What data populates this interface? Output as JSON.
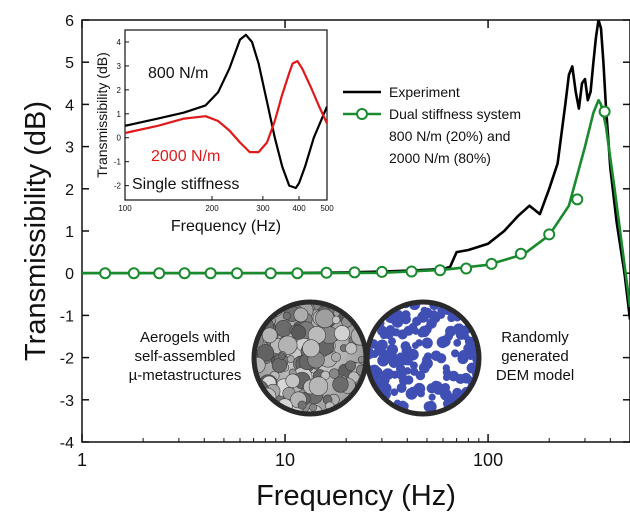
{
  "chart_data": [
    {
      "type": "line",
      "xscale": "log",
      "xlabel": "Frequency (Hz)",
      "ylabel": "Transmissibility (dB)",
      "xlim": [
        1,
        500
      ],
      "ylim": [
        -4,
        6
      ],
      "x_ticks": [
        "1",
        "10",
        "100"
      ],
      "y_ticks": [
        "-4",
        "-3",
        "-2",
        "-1",
        "0",
        "1",
        "2",
        "3",
        "4",
        "5",
        "6"
      ],
      "legend": {
        "position": "top-right",
        "entries": [
          "Experiment",
          "Dual stiffness system",
          "800 N/m (20%) and",
          "2000 N/m (80%)"
        ]
      },
      "series": [
        {
          "name": "Experiment",
          "color": "#000000",
          "x": [
            1,
            5,
            10,
            20,
            30,
            40,
            50,
            60,
            65,
            70,
            80,
            100,
            120,
            140,
            160,
            180,
            200,
            220,
            240,
            250,
            260,
            270,
            280,
            290,
            300,
            310,
            320,
            330,
            340,
            350,
            360,
            370,
            380,
            400,
            430,
            470,
            500
          ],
          "y": [
            0,
            0,
            0,
            0.02,
            0.04,
            0.06,
            0.08,
            0.1,
            0.15,
            0.5,
            0.55,
            0.7,
            1.0,
            1.35,
            1.6,
            1.4,
            2.0,
            2.6,
            4.0,
            4.7,
            4.9,
            4.3,
            3.9,
            4.5,
            4.6,
            4.1,
            4.3,
            5.0,
            5.6,
            6.0,
            5.8,
            5.0,
            4.0,
            2.5,
            1.2,
            0.0,
            -1.1
          ]
        },
        {
          "name": "Dual stiffness system",
          "color": "#1a8a2e",
          "x": [
            1,
            10,
            30,
            60,
            100,
            150,
            200,
            250,
            300,
            330,
            350,
            360,
            380,
            420,
            470,
            500
          ],
          "y": [
            0,
            0,
            0.01,
            0.08,
            0.2,
            0.45,
            0.9,
            1.6,
            3.0,
            3.8,
            4.1,
            4.0,
            3.5,
            2.0,
            0.2,
            -0.8
          ],
          "markers_x": [
            1.3,
            1.8,
            2.4,
            3.2,
            4.3,
            5.8,
            8.5,
            11.5,
            16,
            22,
            30,
            42,
            58,
            78,
            104,
            145,
            200,
            275,
            375
          ],
          "markers_y": [
            0,
            0,
            0,
            0,
            0,
            0,
            0,
            0,
            0.01,
            0.02,
            0.03,
            0.04,
            0.07,
            0.11,
            0.22,
            0.46,
            0.92,
            1.75,
            3.83
          ]
        }
      ]
    },
    {
      "type": "line",
      "xscale": "log",
      "title": "",
      "xlabel": "Frequency (Hz)",
      "ylabel": "Transmissibility (dB)",
      "xlim": [
        100,
        500
      ],
      "ylim": [
        -2.6,
        4.5
      ],
      "x_ticks": [
        "100",
        "200",
        "300",
        "400",
        "500"
      ],
      "y_ticks": [
        "-2",
        "-1",
        "0",
        "1",
        "2",
        "3",
        "4"
      ],
      "annotation": "Single stiffness",
      "series": [
        {
          "name": "800 N/m",
          "color": "#000000",
          "x": [
            100,
            130,
            160,
            190,
            210,
            230,
            250,
            262,
            275,
            290,
            310,
            330,
            350,
            370,
            390,
            400,
            420,
            450,
            480,
            500
          ],
          "y": [
            0.5,
            0.8,
            1.05,
            1.35,
            1.9,
            2.9,
            4.1,
            4.3,
            4.0,
            3.1,
            1.5,
            0.0,
            -1.2,
            -2.0,
            -2.1,
            -1.9,
            -1.2,
            0.0,
            0.8,
            1.3
          ]
        },
        {
          "name": "2000 N/m",
          "color": "#e0191b",
          "x": [
            100,
            130,
            160,
            190,
            210,
            230,
            250,
            270,
            290,
            310,
            330,
            350,
            370,
            380,
            395,
            410,
            440,
            470,
            500
          ],
          "y": [
            0.2,
            0.5,
            0.8,
            0.9,
            0.7,
            0.3,
            -0.2,
            -0.6,
            -0.6,
            -0.2,
            0.7,
            1.8,
            2.7,
            3.1,
            3.2,
            2.9,
            2.1,
            1.3,
            0.6
          ]
        }
      ]
    }
  ],
  "captions": {
    "left": [
      "Aerogels with",
      "self-assembled",
      "µ-metastructures"
    ],
    "right": [
      "Randomly",
      "generated",
      "DEM model"
    ]
  }
}
